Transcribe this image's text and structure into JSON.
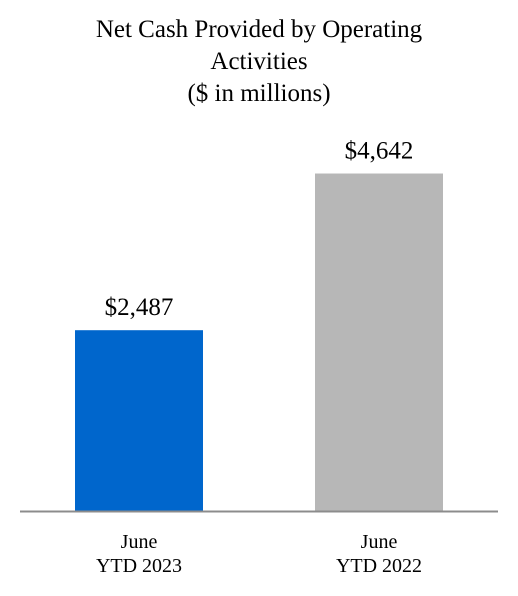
{
  "chart_data": {
    "type": "bar",
    "title_lines": [
      "Net Cash Provided by Operating",
      "Activities",
      "($ in millions)"
    ],
    "categories": [
      [
        "June",
        "YTD 2023"
      ],
      [
        "June",
        "YTD 2022"
      ]
    ],
    "values": [
      2487,
      4642
    ],
    "value_labels": [
      "$2,487",
      "$4,642"
    ],
    "colors": [
      "#0066CC",
      "#B7B7B7"
    ],
    "xlabel": "",
    "ylabel": "",
    "ylim": [
      0,
      5000
    ],
    "grid": false,
    "legend": "none"
  }
}
